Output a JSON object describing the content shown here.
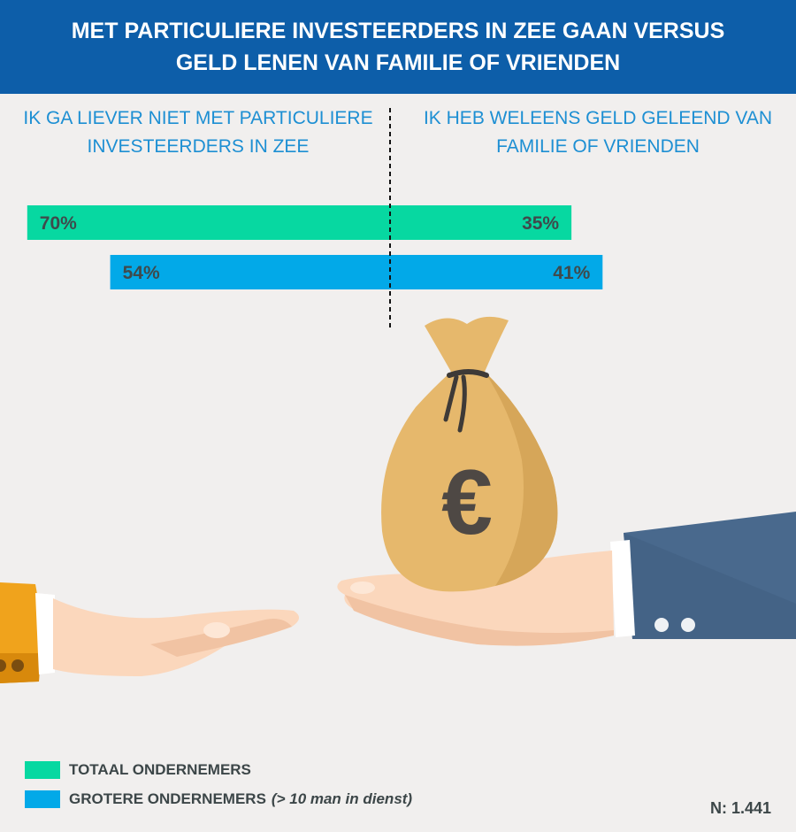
{
  "header": {
    "title_line1": "MET PARTICULIERE INVESTEERDERS IN ZEE GAAN VERSUS",
    "title_line2": "GELD LENEN VAN FAMILIE OF VRIENDEN"
  },
  "chart_data": {
    "type": "bar",
    "orientation": "horizontal-diverging",
    "categories": [
      "IK GA LIEVER NIET MET PARTICULIERE INVESTEERDERS IN ZEE",
      "IK HEB WELEENS GELD GELEEND VAN FAMILIE OF VRIENDEN"
    ],
    "category_lines": [
      [
        "IK GA LIEVER NIET MET PARTICULIERE",
        "INVESTEERDERS IN ZEE"
      ],
      [
        "IK HEB WELEENS GELD GELEEND VAN",
        "FAMILIE OF VRIENDEN"
      ]
    ],
    "series": [
      {
        "name": "TOTAAL ONDERNEMERS",
        "color": "#07d8a1",
        "values": [
          70,
          35
        ],
        "labels": [
          "70%",
          "35%"
        ]
      },
      {
        "name": "GROTERE ONDERNEMERS",
        "name_note": "(> 10 man in dienst)",
        "color": "#02a9e8",
        "values": [
          54,
          41
        ],
        "labels": [
          "54%",
          "41%"
        ]
      }
    ],
    "xlim": [
      -70,
      45
    ],
    "legend_position": "bottom-left",
    "grid": false
  },
  "footer": {
    "n_label": "N: 1.441"
  },
  "colors": {
    "header_bg": "#0d5ea9",
    "label_blue": "#1d8fd3",
    "background": "#f1efee"
  },
  "illustration": {
    "bag_symbol": "€",
    "icons": [
      "money-bag-icon",
      "left-hand-icon",
      "right-hand-icon"
    ]
  }
}
